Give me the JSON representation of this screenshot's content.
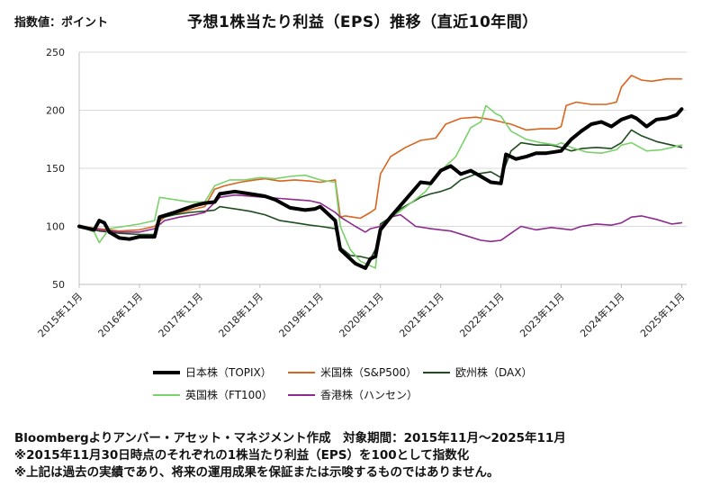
{
  "header": {
    "unit_label": "指数値：ポイント",
    "title": "予想1株当たり利益（EPS）推移（直近10年間）"
  },
  "notes": [
    "Bloombergよりアンバー・アセット・マネジメント作成　対象期間：2015年11月～2025年11月",
    "※2015年11月30日時点のそれぞれの1株当たり利益（EPS）を100として指数化",
    "※上記は過去の実績であり、将来の運用成果を保証または示唆するものではありません。"
  ],
  "chart_data": {
    "type": "line",
    "title": "予想1株当たり利益（EPS）推移（直近10年間）",
    "ylabel": "指数値：ポイント",
    "xlabel": "",
    "ylim": [
      50,
      250
    ],
    "yticks": [
      50,
      100,
      150,
      200,
      250
    ],
    "xlim": [
      "2015-11",
      "2025-12"
    ],
    "x_tick_labels": [
      "2015年11月",
      "2016年11月",
      "2017年11月",
      "2018年11月",
      "2019年11月",
      "2020年11月",
      "2021年11月",
      "2022年11月",
      "2023年11月",
      "2024年11月",
      "2025年11月"
    ],
    "grid": "horizontal",
    "legend_position": "bottom",
    "series": [
      {
        "name": "日本株（TOPIX）",
        "color": "#000000",
        "points": [
          [
            "2015-11",
            100
          ],
          [
            "2016-02",
            97
          ],
          [
            "2016-03",
            105
          ],
          [
            "2016-04",
            103
          ],
          [
            "2016-05",
            95
          ],
          [
            "2016-07",
            90
          ],
          [
            "2016-09",
            89
          ],
          [
            "2016-11",
            91
          ],
          [
            "2017-02",
            91
          ],
          [
            "2017-03",
            108
          ],
          [
            "2017-06",
            112
          ],
          [
            "2017-08",
            115
          ],
          [
            "2017-10",
            118
          ],
          [
            "2017-12",
            120
          ],
          [
            "2018-02",
            121
          ],
          [
            "2018-03",
            128
          ],
          [
            "2018-06",
            130
          ],
          [
            "2018-09",
            128
          ],
          [
            "2018-12",
            126
          ],
          [
            "2019-02",
            123
          ],
          [
            "2019-05",
            116
          ],
          [
            "2019-08",
            114
          ],
          [
            "2019-10",
            115
          ],
          [
            "2019-11",
            117
          ],
          [
            "2020-02",
            105
          ],
          [
            "2020-03",
            80
          ],
          [
            "2020-05",
            72
          ],
          [
            "2020-06",
            68
          ],
          [
            "2020-08",
            64
          ],
          [
            "2020-09",
            72
          ],
          [
            "2020-10",
            74
          ],
          [
            "2020-11",
            97
          ],
          [
            "2021-01",
            108
          ],
          [
            "2021-03",
            118
          ],
          [
            "2021-05",
            128
          ],
          [
            "2021-07",
            138
          ],
          [
            "2021-09",
            137
          ],
          [
            "2021-11",
            148
          ],
          [
            "2022-01",
            152
          ],
          [
            "2022-03",
            145
          ],
          [
            "2022-05",
            148
          ],
          [
            "2022-07",
            143
          ],
          [
            "2022-09",
            138
          ],
          [
            "2022-11",
            137
          ],
          [
            "2022-12",
            162
          ],
          [
            "2023-02",
            158
          ],
          [
            "2023-04",
            160
          ],
          [
            "2023-06",
            163
          ],
          [
            "2023-08",
            163
          ],
          [
            "2023-11",
            165
          ],
          [
            "2024-01",
            175
          ],
          [
            "2024-03",
            182
          ],
          [
            "2024-05",
            188
          ],
          [
            "2024-07",
            190
          ],
          [
            "2024-09",
            186
          ],
          [
            "2024-11",
            192
          ],
          [
            "2025-01",
            195
          ],
          [
            "2025-02",
            193
          ],
          [
            "2025-04",
            186
          ],
          [
            "2025-06",
            192
          ],
          [
            "2025-08",
            193
          ],
          [
            "2025-10",
            196
          ],
          [
            "2025-11",
            201
          ]
        ]
      },
      {
        "name": "米国株（S&P500）",
        "color": "#d9641e",
        "points": [
          [
            "2015-11",
            100
          ],
          [
            "2016-03",
            98
          ],
          [
            "2016-07",
            96
          ],
          [
            "2016-11",
            97
          ],
          [
            "2017-02",
            100
          ],
          [
            "2017-04",
            108
          ],
          [
            "2017-07",
            112
          ],
          [
            "2017-10",
            115
          ],
          [
            "2017-12",
            117
          ],
          [
            "2018-02",
            132
          ],
          [
            "2018-04",
            135
          ],
          [
            "2018-07",
            138
          ],
          [
            "2018-10",
            140
          ],
          [
            "2018-12",
            141
          ],
          [
            "2019-03",
            139
          ],
          [
            "2019-06",
            140
          ],
          [
            "2019-09",
            139
          ],
          [
            "2019-11",
            138
          ],
          [
            "2020-02",
            140
          ],
          [
            "2020-03",
            108
          ],
          [
            "2020-04",
            109
          ],
          [
            "2020-07",
            107
          ],
          [
            "2020-09",
            112
          ],
          [
            "2020-10",
            115
          ],
          [
            "2020-11",
            145
          ],
          [
            "2021-01",
            160
          ],
          [
            "2021-04",
            168
          ],
          [
            "2021-07",
            174
          ],
          [
            "2021-10",
            176
          ],
          [
            "2021-12",
            188
          ],
          [
            "2022-03",
            193
          ],
          [
            "2022-06",
            194
          ],
          [
            "2022-09",
            192
          ],
          [
            "2022-11",
            190
          ],
          [
            "2023-01",
            188
          ],
          [
            "2023-04",
            183
          ],
          [
            "2023-07",
            184
          ],
          [
            "2023-10",
            184
          ],
          [
            "2023-11",
            186
          ],
          [
            "2023-12",
            204
          ],
          [
            "2024-02",
            207
          ],
          [
            "2024-05",
            205
          ],
          [
            "2024-08",
            205
          ],
          [
            "2024-10",
            207
          ],
          [
            "2024-11",
            220
          ],
          [
            "2025-01",
            230
          ],
          [
            "2025-03",
            226
          ],
          [
            "2025-05",
            225
          ],
          [
            "2025-08",
            227
          ],
          [
            "2025-11",
            227
          ]
        ]
      },
      {
        "name": "欧州株（DAX）",
        "color": "#1f4d1f",
        "points": [
          [
            "2015-11",
            100
          ],
          [
            "2016-03",
            96
          ],
          [
            "2016-07",
            94
          ],
          [
            "2016-11",
            93
          ],
          [
            "2017-02",
            93
          ],
          [
            "2017-03",
            107
          ],
          [
            "2017-06",
            110
          ],
          [
            "2017-09",
            112
          ],
          [
            "2017-12",
            113
          ],
          [
            "2018-02",
            114
          ],
          [
            "2018-03",
            117
          ],
          [
            "2018-06",
            115
          ],
          [
            "2018-09",
            113
          ],
          [
            "2018-12",
            110
          ],
          [
            "2019-03",
            105
          ],
          [
            "2019-06",
            103
          ],
          [
            "2019-09",
            101
          ],
          [
            "2019-11",
            100
          ],
          [
            "2020-02",
            98
          ],
          [
            "2020-03",
            82
          ],
          [
            "2020-05",
            75
          ],
          [
            "2020-07",
            74
          ],
          [
            "2020-09",
            72
          ],
          [
            "2020-10",
            80
          ],
          [
            "2020-11",
            102
          ],
          [
            "2021-01",
            108
          ],
          [
            "2021-03",
            115
          ],
          [
            "2021-05",
            120
          ],
          [
            "2021-07",
            125
          ],
          [
            "2021-09",
            128
          ],
          [
            "2021-11",
            130
          ],
          [
            "2022-01",
            133
          ],
          [
            "2022-03",
            140
          ],
          [
            "2022-06",
            145
          ],
          [
            "2022-09",
            147
          ],
          [
            "2022-11",
            142
          ],
          [
            "2023-01",
            165
          ],
          [
            "2023-03",
            172
          ],
          [
            "2023-06",
            170
          ],
          [
            "2023-09",
            170
          ],
          [
            "2023-11",
            168
          ],
          [
            "2024-01",
            165
          ],
          [
            "2024-03",
            167
          ],
          [
            "2024-06",
            168
          ],
          [
            "2024-09",
            167
          ],
          [
            "2024-11",
            172
          ],
          [
            "2025-01",
            183
          ],
          [
            "2025-03",
            178
          ],
          [
            "2025-06",
            173
          ],
          [
            "2025-09",
            170
          ],
          [
            "2025-11",
            168
          ]
        ]
      },
      {
        "name": "英国株（FT100）",
        "color": "#7bd16b",
        "points": [
          [
            "2015-11",
            100
          ],
          [
            "2016-02",
            95
          ],
          [
            "2016-03",
            86
          ],
          [
            "2016-05",
            98
          ],
          [
            "2016-08",
            100
          ],
          [
            "2016-11",
            102
          ],
          [
            "2017-02",
            105
          ],
          [
            "2017-03",
            125
          ],
          [
            "2017-06",
            123
          ],
          [
            "2017-09",
            121
          ],
          [
            "2017-12",
            121
          ],
          [
            "2018-02",
            135
          ],
          [
            "2018-05",
            140
          ],
          [
            "2018-08",
            140
          ],
          [
            "2018-11",
            142
          ],
          [
            "2019-02",
            141
          ],
          [
            "2019-05",
            143
          ],
          [
            "2019-08",
            144
          ],
          [
            "2019-11",
            140
          ],
          [
            "2020-02",
            138
          ],
          [
            "2020-03",
            100
          ],
          [
            "2020-05",
            80
          ],
          [
            "2020-07",
            70
          ],
          [
            "2020-09",
            66
          ],
          [
            "2020-10",
            64
          ],
          [
            "2020-11",
            100
          ],
          [
            "2021-02",
            110
          ],
          [
            "2021-05",
            120
          ],
          [
            "2021-08",
            130
          ],
          [
            "2021-11",
            148
          ],
          [
            "2022-02",
            160
          ],
          [
            "2022-05",
            185
          ],
          [
            "2022-07",
            190
          ],
          [
            "2022-08",
            204
          ],
          [
            "2022-10",
            197
          ],
          [
            "2022-11",
            195
          ],
          [
            "2023-01",
            182
          ],
          [
            "2023-04",
            175
          ],
          [
            "2023-07",
            172
          ],
          [
            "2023-10",
            170
          ],
          [
            "2023-11",
            172
          ],
          [
            "2024-01",
            168
          ],
          [
            "2024-04",
            164
          ],
          [
            "2024-07",
            163
          ],
          [
            "2024-10",
            166
          ],
          [
            "2024-11",
            170
          ],
          [
            "2025-01",
            172
          ],
          [
            "2025-04",
            165
          ],
          [
            "2025-07",
            166
          ],
          [
            "2025-09",
            168
          ],
          [
            "2025-11",
            170
          ]
        ]
      },
      {
        "name": "香港株（ハンセン）",
        "color": "#8e2a8e",
        "points": [
          [
            "2015-11",
            100
          ],
          [
            "2016-03",
            97
          ],
          [
            "2016-07",
            95
          ],
          [
            "2016-11",
            95
          ],
          [
            "2017-02",
            98
          ],
          [
            "2017-04",
            105
          ],
          [
            "2017-07",
            108
          ],
          [
            "2017-10",
            110
          ],
          [
            "2017-12",
            112
          ],
          [
            "2018-03",
            125
          ],
          [
            "2018-06",
            127
          ],
          [
            "2018-09",
            126
          ],
          [
            "2018-12",
            125
          ],
          [
            "2019-03",
            124
          ],
          [
            "2019-06",
            123
          ],
          [
            "2019-09",
            122
          ],
          [
            "2019-11",
            120
          ],
          [
            "2020-02",
            112
          ],
          [
            "2020-03",
            108
          ],
          [
            "2020-06",
            100
          ],
          [
            "2020-08",
            95
          ],
          [
            "2020-09",
            98
          ],
          [
            "2020-11",
            100
          ],
          [
            "2021-01",
            108
          ],
          [
            "2021-03",
            110
          ],
          [
            "2021-06",
            100
          ],
          [
            "2021-09",
            98
          ],
          [
            "2021-11",
            97
          ],
          [
            "2022-01",
            96
          ],
          [
            "2022-04",
            92
          ],
          [
            "2022-07",
            88
          ],
          [
            "2022-09",
            87
          ],
          [
            "2022-11",
            88
          ],
          [
            "2023-01",
            94
          ],
          [
            "2023-03",
            100
          ],
          [
            "2023-06",
            97
          ],
          [
            "2023-09",
            99
          ],
          [
            "2023-11",
            98
          ],
          [
            "2024-01",
            97
          ],
          [
            "2024-03",
            100
          ],
          [
            "2024-06",
            102
          ],
          [
            "2024-09",
            101
          ],
          [
            "2024-11",
            103
          ],
          [
            "2025-01",
            108
          ],
          [
            "2025-03",
            109
          ],
          [
            "2025-06",
            106
          ],
          [
            "2025-09",
            102
          ],
          [
            "2025-11",
            103
          ]
        ]
      }
    ]
  }
}
